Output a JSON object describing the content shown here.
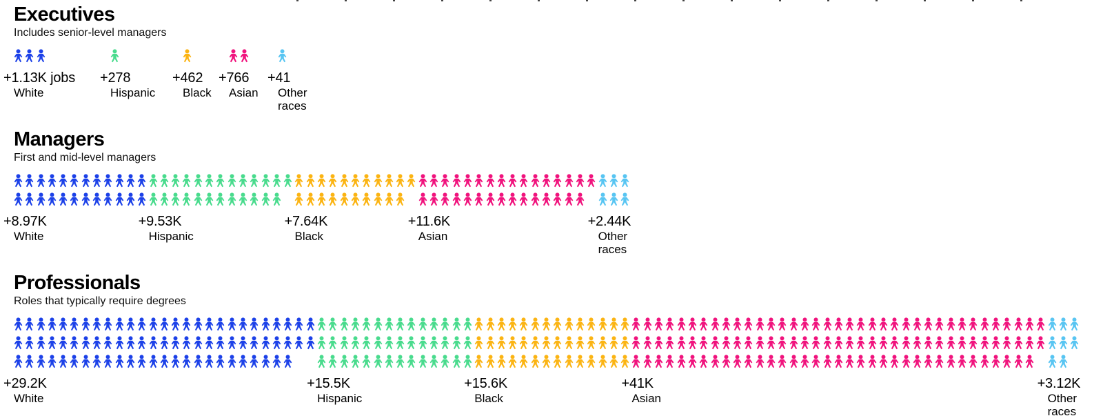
{
  "page": {
    "background": "#FFFFFF"
  },
  "chart_data": {
    "type": "pictogram",
    "palette": {
      "blue": "#1C41E8",
      "green": "#49DB8D",
      "yellow": "#FBB413",
      "pink": "#F0137D",
      "light_blue": "#58C5F2"
    },
    "sections": [
      {
        "title": "Executives",
        "subtitle": "Includes senior-level managers",
        "groups": [
          {
            "race": "White",
            "delta_label": "+1.13K jobs",
            "value": 1130,
            "color_name": "blue",
            "icons_per_row": [
              3
            ]
          },
          {
            "race": "Hispanic",
            "delta_label": "+278",
            "value": 278,
            "color_name": "green",
            "icons_per_row": [
              1
            ]
          },
          {
            "race": "Black",
            "delta_label": "+462",
            "value": 462,
            "color_name": "yellow",
            "icons_per_row": [
              1
            ]
          },
          {
            "race": "Asian",
            "delta_label": "+766",
            "value": 766,
            "color_name": "pink",
            "icons_per_row": [
              2
            ]
          },
          {
            "race": "Other races",
            "delta_label": "+41",
            "value": 41,
            "color_name": "light_blue",
            "icons_per_row": [
              1
            ]
          }
        ]
      },
      {
        "title": "Managers",
        "subtitle": "First and mid-level managers",
        "groups": [
          {
            "race": "White",
            "delta_label": "+8.97K",
            "value": 8970,
            "color_name": "blue",
            "icons_per_row": [
              12,
              12
            ]
          },
          {
            "race": "Hispanic",
            "delta_label": "+9.53K",
            "value": 9530,
            "color_name": "green",
            "icons_per_row": [
              13,
              12
            ]
          },
          {
            "race": "Black",
            "delta_label": "+7.64K",
            "value": 7640,
            "color_name": "yellow",
            "icons_per_row": [
              11,
              10
            ]
          },
          {
            "race": "Asian",
            "delta_label": "+11.6K",
            "value": 11600,
            "color_name": "pink",
            "icons_per_row": [
              16,
              15
            ]
          },
          {
            "race": "Other races",
            "delta_label": "+2.44K",
            "value": 2440,
            "color_name": "light_blue",
            "icons_per_row": [
              3,
              3
            ]
          }
        ]
      },
      {
        "title": "Professionals",
        "subtitle": "Roles that typically require degrees",
        "groups": [
          {
            "race": "White",
            "delta_label": "+29.2K",
            "value": 29200,
            "color_name": "blue",
            "icons_per_row": [
              27,
              27,
              25
            ]
          },
          {
            "race": "Hispanic",
            "delta_label": "+15.5K",
            "value": 15500,
            "color_name": "green",
            "icons_per_row": [
              14,
              14,
              14
            ]
          },
          {
            "race": "Black",
            "delta_label": "+15.6K",
            "value": 15600,
            "color_name": "yellow",
            "icons_per_row": [
              14,
              14,
              14
            ]
          },
          {
            "race": "Asian",
            "delta_label": "+41K",
            "value": 41000,
            "color_name": "pink",
            "icons_per_row": [
              37,
              37,
              36
            ]
          },
          {
            "race": "Other races",
            "delta_label": "+3.12K",
            "value": 3120,
            "color_name": "light_blue",
            "icons_per_row": [
              3,
              3,
              2
            ]
          }
        ]
      }
    ]
  }
}
